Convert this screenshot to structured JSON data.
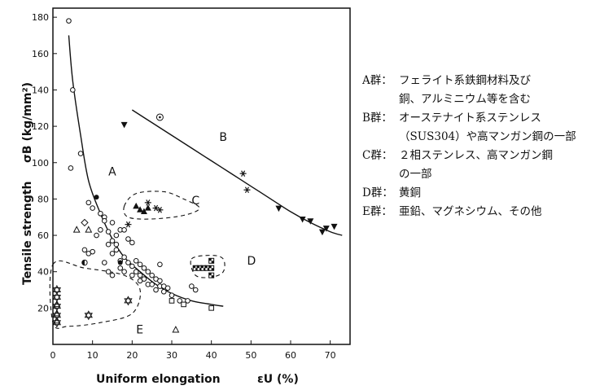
{
  "chart_data": {
    "type": "scatter",
    "xlabel": "Uniform elongation",
    "xsymbol": "εU (%)",
    "ylabel": "Tensile strength",
    "ysymbol": "σB (kg/mm²)",
    "xlim": [
      0,
      75
    ],
    "ylim": [
      0,
      185
    ],
    "xticks": [
      "0",
      "10",
      "20",
      "30",
      "40",
      "50",
      "60",
      "70"
    ],
    "yticks": [
      "20",
      "40",
      "60",
      "80",
      "100",
      "120",
      "140",
      "160",
      "180"
    ],
    "series": [
      {
        "marker": "circle",
        "points": [
          [
            4,
            178
          ],
          [
            5,
            140
          ],
          [
            4.5,
            97
          ],
          [
            7,
            105
          ],
          [
            9,
            78
          ],
          [
            10,
            75
          ],
          [
            11,
            60
          ],
          [
            12,
            63
          ],
          [
            12,
            72
          ],
          [
            13,
            70
          ],
          [
            13,
            68
          ],
          [
            14,
            62
          ],
          [
            14,
            55
          ],
          [
            15,
            57
          ],
          [
            16,
            60
          ],
          [
            15,
            50
          ],
          [
            16,
            52
          ],
          [
            17,
            46
          ],
          [
            18,
            48
          ],
          [
            17,
            42
          ],
          [
            18,
            40
          ],
          [
            19,
            45
          ],
          [
            20,
            43
          ],
          [
            20,
            38
          ],
          [
            21,
            46
          ],
          [
            21,
            40
          ],
          [
            22,
            44
          ],
          [
            22,
            38
          ],
          [
            22,
            35
          ],
          [
            23,
            42
          ],
          [
            23,
            36
          ],
          [
            24,
            40
          ],
          [
            24,
            33
          ],
          [
            25,
            38
          ],
          [
            25,
            33
          ],
          [
            26,
            36
          ],
          [
            26,
            30
          ],
          [
            27,
            35
          ],
          [
            27,
            32
          ],
          [
            28,
            32
          ],
          [
            28,
            29
          ],
          [
            29,
            31
          ],
          [
            30,
            27
          ],
          [
            32,
            24
          ],
          [
            34,
            24
          ],
          [
            8,
            52
          ],
          [
            9,
            50
          ],
          [
            10,
            51
          ],
          [
            13,
            45
          ],
          [
            14,
            40
          ],
          [
            15,
            38
          ],
          [
            16,
            55
          ],
          [
            17,
            63
          ],
          [
            19,
            58
          ],
          [
            20,
            56
          ],
          [
            18,
            63
          ],
          [
            15,
            67
          ],
          [
            27,
            44
          ],
          [
            35,
            32
          ],
          [
            36,
            30
          ]
        ]
      },
      {
        "marker": "filled-circle",
        "points": [
          [
            11,
            81
          ],
          [
            17,
            45
          ]
        ]
      },
      {
        "marker": "half-circle",
        "points": [
          [
            8,
            45
          ]
        ]
      },
      {
        "marker": "dotted-circle",
        "points": [
          [
            27,
            125
          ]
        ]
      },
      {
        "marker": "filled-triangle-up",
        "points": [
          [
            21,
            76
          ],
          [
            22,
            74
          ],
          [
            23,
            73
          ],
          [
            24,
            75
          ]
        ]
      },
      {
        "marker": "asterisk",
        "points": [
          [
            19,
            66
          ],
          [
            24,
            78
          ],
          [
            26,
            75
          ],
          [
            27,
            74
          ],
          [
            48,
            94
          ],
          [
            49,
            85
          ]
        ]
      },
      {
        "marker": "filled-triangle-down",
        "points": [
          [
            18,
            121
          ],
          [
            57,
            75
          ],
          [
            63,
            69
          ],
          [
            65,
            68
          ],
          [
            69,
            64
          ],
          [
            71,
            65
          ],
          [
            68,
            62
          ]
        ]
      },
      {
        "marker": "triangle-up",
        "points": [
          [
            1,
            22
          ],
          [
            1,
            17
          ],
          [
            1,
            13
          ],
          [
            6,
            63
          ],
          [
            9,
            63
          ],
          [
            31,
            8
          ]
        ]
      },
      {
        "marker": "diamond",
        "points": [
          [
            8,
            67
          ]
        ]
      },
      {
        "marker": "square",
        "points": [
          [
            30,
            24
          ],
          [
            33,
            22
          ],
          [
            40,
            20
          ]
        ]
      },
      {
        "marker": "quartered-square",
        "points": [
          [
            36,
            42
          ],
          [
            37,
            42
          ],
          [
            38,
            42
          ],
          [
            39,
            42
          ],
          [
            40,
            42
          ],
          [
            40,
            46
          ],
          [
            40,
            38
          ]
        ]
      },
      {
        "marker": "star-of-david",
        "points": [
          [
            1,
            30
          ],
          [
            1,
            26
          ],
          [
            1,
            21
          ],
          [
            1,
            16
          ],
          [
            1,
            12
          ],
          [
            9,
            16
          ],
          [
            19,
            24
          ]
        ]
      }
    ],
    "trend_lines": [
      {
        "name": "A",
        "points": [
          [
            4,
            170
          ],
          [
            5,
            145
          ],
          [
            7,
            115
          ],
          [
            9,
            90
          ],
          [
            12,
            72
          ],
          [
            15,
            58
          ],
          [
            18,
            48
          ],
          [
            22,
            40
          ],
          [
            26,
            33
          ],
          [
            30,
            28
          ],
          [
            35,
            24
          ],
          [
            40,
            22
          ],
          [
            43,
            21
          ]
        ]
      },
      {
        "name": "B",
        "points": [
          [
            20,
            129
          ],
          [
            25,
            122
          ],
          [
            30,
            115
          ],
          [
            35,
            108
          ],
          [
            40,
            101
          ],
          [
            45,
            94
          ],
          [
            50,
            87
          ],
          [
            55,
            80
          ],
          [
            60,
            73
          ],
          [
            65,
            67
          ],
          [
            70,
            62
          ],
          [
            73,
            60
          ]
        ]
      }
    ],
    "regions": [
      {
        "name": "C",
        "points": [
          [
            18,
            76
          ],
          [
            21,
            83
          ],
          [
            28,
            84
          ],
          [
            33,
            80
          ],
          [
            37,
            75
          ],
          [
            33,
            71
          ],
          [
            25,
            69
          ],
          [
            19,
            70
          ]
        ]
      },
      {
        "name": "D",
        "points": [
          [
            35,
            47
          ],
          [
            40,
            49
          ],
          [
            43,
            47
          ],
          [
            43,
            40
          ],
          [
            40,
            37
          ],
          [
            36,
            38
          ]
        ]
      },
      {
        "name": "E",
        "points": [
          [
            0,
            44
          ],
          [
            8,
            42
          ],
          [
            18,
            38
          ],
          [
            22,
            30
          ],
          [
            20,
            17
          ],
          [
            12,
            12
          ],
          [
            4,
            10
          ],
          [
            0,
            12
          ]
        ]
      }
    ],
    "group_labels": [
      "A",
      "B",
      "C",
      "D",
      "E"
    ]
  },
  "legend": [
    {
      "key": "A群：",
      "lines": [
        "フェライト系鉄鋼材料及び",
        "銅、アルミニウム等を含む"
      ]
    },
    {
      "key": "B群：",
      "lines": [
        "オーステナイト系ステンレス",
        "（SUS304）や高マンガン鋼の一部"
      ]
    },
    {
      "key": "C群：",
      "lines": [
        "２相ステンレス、高マンガン鋼",
        "の一部"
      ]
    },
    {
      "key": "D群：",
      "lines": [
        "黄銅"
      ]
    },
    {
      "key": "E群：",
      "lines": [
        "亜鉛、マグネシウム、その他"
      ]
    }
  ]
}
